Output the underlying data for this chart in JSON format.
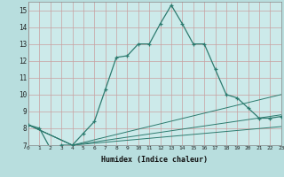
{
  "xlabel": "Humidex (Indice chaleur)",
  "background_color": "#b8dede",
  "plot_bg_color": "#cceaea",
  "grid_color": "#c8a0a0",
  "line_color": "#2d7b6f",
  "x_range": [
    0,
    23
  ],
  "y_range": [
    7,
    15.5
  ],
  "lines": [
    {
      "x": [
        0,
        1,
        2,
        3,
        4,
        5,
        6,
        7,
        8,
        9,
        10,
        11,
        12,
        13,
        14,
        15,
        16,
        17,
        18,
        19,
        20,
        21,
        22,
        23
      ],
      "y": [
        8.2,
        8.0,
        6.8,
        7.0,
        7.0,
        7.7,
        8.4,
        10.3,
        12.2,
        12.3,
        13.0,
        13.0,
        14.2,
        15.3,
        14.2,
        13.0,
        13.0,
        11.5,
        10.0,
        9.8,
        9.2,
        8.6,
        8.6,
        8.7
      ],
      "has_markers": true
    },
    {
      "x": [
        0,
        4,
        23
      ],
      "y": [
        8.2,
        7.0,
        10.0
      ],
      "has_markers": false
    },
    {
      "x": [
        0,
        4,
        23
      ],
      "y": [
        8.2,
        7.0,
        8.8
      ],
      "has_markers": false
    },
    {
      "x": [
        0,
        4,
        23
      ],
      "y": [
        8.2,
        7.0,
        8.1
      ],
      "has_markers": false
    }
  ]
}
